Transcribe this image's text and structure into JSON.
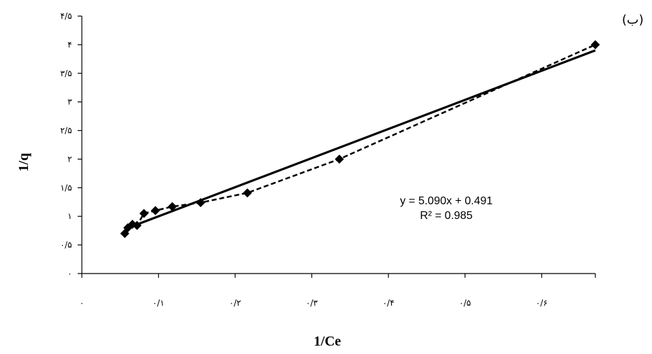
{
  "chart_data": {
    "type": "scatter",
    "panel_label": "(ب)",
    "xlabel": "1/Ce",
    "ylabel": "1/q",
    "xlim": [
      0,
      0.67
    ],
    "ylim": [
      0,
      4.5
    ],
    "x_ticks": [
      0,
      0.1,
      0.2,
      0.3,
      0.4,
      0.5,
      0.6
    ],
    "x_tick_labels": [
      "۰",
      "۰/۱",
      "۰/۲",
      "۰/۳",
      "۰/۴",
      "۰/۵",
      "۰/۶"
    ],
    "y_ticks": [
      0,
      0.5,
      1,
      1.5,
      2,
      2.5,
      3,
      3.5,
      4,
      4.5
    ],
    "y_tick_labels": [
      "۰",
      "۰/۵",
      "۱",
      "۱/۵",
      "۲",
      "۲/۵",
      "۳",
      "۳/۵",
      "۴",
      "۴/۵"
    ],
    "grid": false,
    "series": [
      {
        "marker": "diamond",
        "line": "dashed",
        "color": "#000000",
        "points": [
          {
            "x": 0.056,
            "y": 0.7
          },
          {
            "x": 0.06,
            "y": 0.8
          },
          {
            "x": 0.066,
            "y": 0.86
          },
          {
            "x": 0.072,
            "y": 0.84
          },
          {
            "x": 0.081,
            "y": 1.05
          },
          {
            "x": 0.096,
            "y": 1.1
          },
          {
            "x": 0.118,
            "y": 1.17
          },
          {
            "x": 0.155,
            "y": 1.24
          },
          {
            "x": 0.216,
            "y": 1.41
          },
          {
            "x": 0.336,
            "y": 2.0
          },
          {
            "x": 0.67,
            "y": 4.0
          }
        ]
      }
    ],
    "trendline": {
      "style": "solid",
      "color": "#000000",
      "slope": 5.09,
      "intercept": 0.491,
      "x_range": [
        0.056,
        0.67
      ],
      "equation": "y = 5.090x + 0.491",
      "r_squared": "R² = 0.985"
    }
  }
}
